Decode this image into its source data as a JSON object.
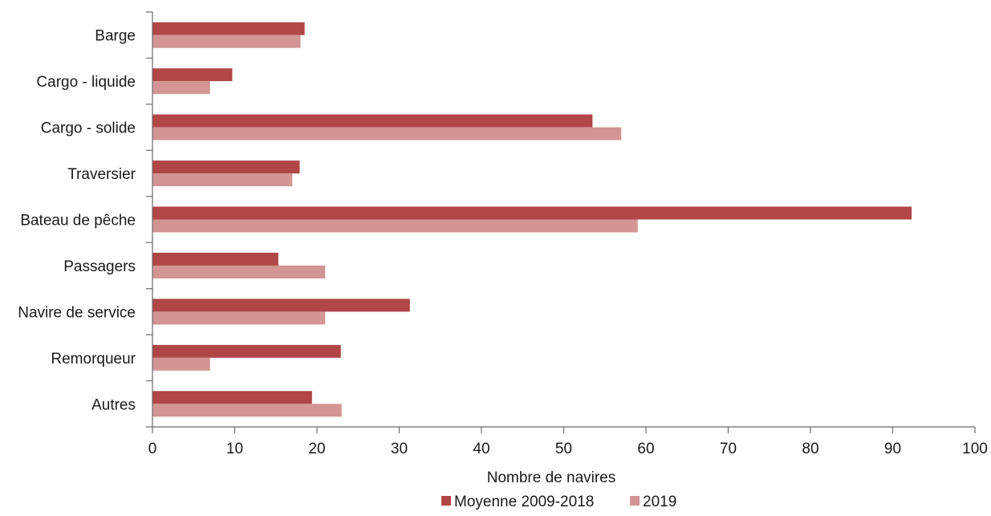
{
  "chart_data": {
    "type": "bar",
    "orientation": "horizontal",
    "categories": [
      "Barge",
      "Cargo - liquide",
      "Cargo - solide",
      "Traversier",
      "Bateau de pêche",
      "Passagers",
      "Navire de service",
      "Remorqueur",
      "Autres"
    ],
    "series": [
      {
        "name": "Moyenne 2009-2018",
        "color": "#b04646",
        "values": [
          18.5,
          9.7,
          53.5,
          17.9,
          92.3,
          15.3,
          31.3,
          22.9,
          19.4
        ]
      },
      {
        "name": "2019",
        "color": "#d39494",
        "values": [
          18,
          7,
          57,
          17,
          59,
          21,
          21,
          7,
          23
        ]
      }
    ],
    "xlabel": "Nombre de navires",
    "ylabel": "",
    "title": "",
    "xlim": [
      0,
      100
    ],
    "xticks": [
      "0",
      "10",
      "20",
      "30",
      "40",
      "50",
      "60",
      "70",
      "80",
      "90",
      "100"
    ],
    "grid": false,
    "legend_position": "bottom"
  }
}
